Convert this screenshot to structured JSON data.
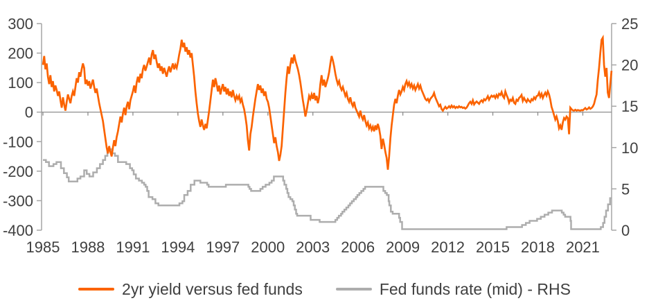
{
  "chart_data": {
    "type": "line",
    "title": "",
    "x_domain": [
      1985,
      2022.92
    ],
    "x_ticks": [
      1985,
      1988,
      1991,
      1994,
      1997,
      2000,
      2003,
      2006,
      2009,
      2012,
      2015,
      2018,
      2021
    ],
    "left_axis": {
      "range": [
        -400,
        300
      ],
      "ticks": [
        300,
        200,
        100,
        0,
        -100,
        -200,
        -300,
        -400
      ],
      "zero_baseline": 0
    },
    "right_axis": {
      "range": [
        0,
        25
      ],
      "ticks": [
        25,
        20,
        15,
        10,
        5,
        0
      ]
    },
    "grid": "off",
    "legend_position": "bottom-center",
    "legend": [
      {
        "label": "2yr yield versus fed funds",
        "color": "#FB6300"
      },
      {
        "label": "Fed funds rate (mid) - RHS",
        "color": "#ADADAD"
      }
    ],
    "series": [
      {
        "name": "2yr yield versus fed funds",
        "axis": "left",
        "unit": "bp",
        "color": "#FB6300",
        "start_year": 1985,
        "frequency": "monthly",
        "values_by_year": [
          [
            160,
            190,
            145,
            165,
            120,
            95,
            125,
            85,
            105,
            70,
            90,
            75
          ],
          [
            55,
            70,
            40,
            15,
            50,
            25,
            5,
            35,
            60,
            45,
            30,
            55
          ],
          [
            70,
            55,
            85,
            115,
            100,
            135,
            120,
            145,
            165,
            150,
            95,
            110
          ],
          [
            90,
            105,
            80,
            95,
            110,
            85,
            65,
            80,
            55,
            30,
            10,
            -10
          ],
          [
            -30,
            -60,
            -90,
            -120,
            -140,
            -115,
            -135,
            -150,
            -120,
            -95,
            -115,
            -85
          ],
          [
            -65,
            -40,
            -15,
            -35,
            -5,
            15,
            -10,
            20,
            35,
            10,
            40,
            55
          ],
          [
            70,
            90,
            65,
            100,
            120,
            100,
            130,
            115,
            145,
            160,
            140,
            155
          ],
          [
            170,
            185,
            160,
            195,
            210,
            180,
            195,
            170,
            150,
            165,
            140,
            155
          ],
          [
            130,
            150,
            135,
            120,
            140,
            155,
            135,
            150,
            165,
            145,
            160,
            150
          ],
          [
            170,
            195,
            215,
            245,
            220,
            235,
            205,
            220,
            195,
            210,
            185,
            200
          ],
          [
            160,
            120,
            70,
            30,
            -5,
            -30,
            -50,
            -25,
            -45,
            -60,
            -40,
            -55
          ],
          [
            -25,
            5,
            40,
            75,
            110,
            85,
            115,
            95,
            70,
            90,
            60,
            80
          ],
          [
            95,
            70,
            85,
            60,
            80,
            55,
            70,
            50,
            75,
            55,
            40,
            55
          ],
          [
            45,
            55,
            35,
            45,
            25,
            10,
            -15,
            -45,
            -95,
            -130,
            -75,
            -50
          ],
          [
            -15,
            15,
            45,
            70,
            95,
            75,
            90,
            65,
            80,
            55,
            70,
            45
          ],
          [
            35,
            15,
            -15,
            -45,
            -75,
            -105,
            -85,
            -115,
            -135,
            -165,
            -145,
            -115
          ],
          [
            -55,
            5,
            65,
            115,
            155,
            130,
            160,
            185,
            165,
            195,
            175,
            160
          ],
          [
            145,
            125,
            100,
            70,
            40,
            15,
            -15,
            5,
            30,
            55,
            45,
            60
          ],
          [
            45,
            65,
            40,
            55,
            30,
            50,
            95,
            125,
            90,
            110,
            85,
            100
          ],
          [
            115,
            135,
            165,
            190,
            175,
            155,
            130,
            110,
            95,
            105,
            85,
            75
          ],
          [
            85,
            70,
            55,
            65,
            45,
            35,
            50,
            30,
            20,
            35,
            15,
            5
          ],
          [
            -5,
            -15,
            5,
            -15,
            -25,
            -10,
            -30,
            -45,
            -35,
            -55,
            -45,
            -60
          ],
          [
            -50,
            -65,
            -45,
            -60,
            -40,
            -55,
            -80,
            -125,
            -90,
            -110,
            -135,
            -155
          ],
          [
            -195,
            -150,
            -90,
            -45,
            -10,
            25,
            45,
            30,
            55,
            75,
            60,
            70
          ],
          [
            85,
            75,
            95,
            105,
            90,
            100,
            85,
            95,
            80,
            90,
            75,
            85
          ],
          [
            95,
            80,
            90,
            75,
            65,
            55,
            45,
            40,
            45,
            35,
            45,
            50
          ],
          [
            55,
            65,
            50,
            40,
            30,
            20,
            25,
            10,
            5,
            12,
            18,
            12
          ],
          [
            15,
            20,
            15,
            22,
            16,
            20,
            14,
            18,
            15,
            20,
            16,
            18
          ],
          [
            14,
            16,
            12,
            15,
            22,
            30,
            35,
            28,
            40,
            26,
            32,
            36
          ],
          [
            32,
            28,
            36,
            40,
            34,
            44,
            40,
            46,
            54,
            42,
            50,
            56
          ],
          [
            52,
            56,
            48,
            58,
            50,
            62,
            58,
            68,
            54,
            48,
            70,
            58
          ],
          [
            48,
            32,
            42,
            38,
            48,
            32,
            28,
            42,
            38,
            48,
            52,
            58
          ],
          [
            38,
            48,
            40,
            34,
            44,
            38,
            34,
            44,
            40,
            50,
            44,
            54
          ],
          [
            56,
            66,
            52,
            62,
            48,
            58,
            66,
            56,
            70,
            60,
            42,
            18
          ],
          [
            5,
            -10,
            -25,
            -15,
            -30,
            -55,
            -45,
            -60,
            -35,
            -20,
            -25,
            -15
          ],
          [
            -20,
            -75,
            15,
            10,
            6,
            5,
            8,
            5,
            7,
            6,
            5,
            7
          ],
          [
            6,
            10,
            14,
            9,
            11,
            16,
            11,
            14,
            19,
            28,
            45,
            60
          ],
          [
            110,
            150,
            200,
            245,
            252,
            160,
            120,
            150,
            66,
            48,
            95,
            140
          ]
        ]
      },
      {
        "name": "Fed funds rate (mid) - RHS",
        "axis": "right",
        "unit": "%",
        "color": "#ADADAD",
        "style": "step",
        "points": [
          [
            1985.0,
            8.5
          ],
          [
            1985.2,
            8.25
          ],
          [
            1985.4,
            7.75
          ],
          [
            1985.7,
            8.0
          ],
          [
            1985.9,
            8.25
          ],
          [
            1986.2,
            7.5
          ],
          [
            1986.4,
            6.9
          ],
          [
            1986.6,
            6.4
          ],
          [
            1986.72,
            5.9
          ],
          [
            1987.3,
            6.25
          ],
          [
            1987.5,
            6.5
          ],
          [
            1987.75,
            7.25
          ],
          [
            1987.92,
            6.8
          ],
          [
            1988.1,
            6.5
          ],
          [
            1988.35,
            7.0
          ],
          [
            1988.6,
            7.5
          ],
          [
            1988.8,
            8.0
          ],
          [
            1989.0,
            8.5
          ],
          [
            1989.15,
            9.0
          ],
          [
            1989.3,
            9.75
          ],
          [
            1989.45,
            9.8
          ],
          [
            1989.6,
            9.3
          ],
          [
            1989.8,
            9.0
          ],
          [
            1990.0,
            8.25
          ],
          [
            1990.55,
            8.0
          ],
          [
            1990.8,
            7.5
          ],
          [
            1990.95,
            7.25
          ],
          [
            1991.05,
            6.75
          ],
          [
            1991.2,
            6.25
          ],
          [
            1991.4,
            6.0
          ],
          [
            1991.6,
            5.75
          ],
          [
            1991.75,
            5.5
          ],
          [
            1991.85,
            5.25
          ],
          [
            1991.95,
            4.75
          ],
          [
            1992.05,
            4.0
          ],
          [
            1992.3,
            3.75
          ],
          [
            1992.5,
            3.25
          ],
          [
            1992.7,
            3.0
          ],
          [
            1994.1,
            3.25
          ],
          [
            1994.3,
            3.5
          ],
          [
            1994.42,
            4.25
          ],
          [
            1994.65,
            4.75
          ],
          [
            1994.85,
            5.5
          ],
          [
            1995.1,
            6.0
          ],
          [
            1995.5,
            5.75
          ],
          [
            1995.95,
            5.5
          ],
          [
            1996.05,
            5.25
          ],
          [
            1997.2,
            5.5
          ],
          [
            1998.7,
            5.25
          ],
          [
            1998.78,
            5.0
          ],
          [
            1998.88,
            4.75
          ],
          [
            1999.5,
            5.0
          ],
          [
            1999.65,
            5.25
          ],
          [
            1999.85,
            5.5
          ],
          [
            2000.1,
            5.75
          ],
          [
            2000.25,
            6.0
          ],
          [
            2000.4,
            6.5
          ],
          [
            2001.02,
            6.0
          ],
          [
            2001.1,
            5.5
          ],
          [
            2001.22,
            5.0
          ],
          [
            2001.3,
            4.5
          ],
          [
            2001.38,
            4.0
          ],
          [
            2001.5,
            3.75
          ],
          [
            2001.63,
            3.5
          ],
          [
            2001.72,
            3.0
          ],
          [
            2001.8,
            2.5
          ],
          [
            2001.88,
            2.0
          ],
          [
            2001.95,
            1.75
          ],
          [
            2002.85,
            1.25
          ],
          [
            2003.45,
            1.0
          ],
          [
            2004.5,
            1.25
          ],
          [
            2004.62,
            1.5
          ],
          [
            2004.73,
            1.75
          ],
          [
            2004.88,
            2.0
          ],
          [
            2004.97,
            2.25
          ],
          [
            2005.1,
            2.5
          ],
          [
            2005.23,
            2.75
          ],
          [
            2005.37,
            3.0
          ],
          [
            2005.48,
            3.25
          ],
          [
            2005.6,
            3.5
          ],
          [
            2005.73,
            3.75
          ],
          [
            2005.87,
            4.0
          ],
          [
            2005.97,
            4.25
          ],
          [
            2006.1,
            4.5
          ],
          [
            2006.23,
            4.75
          ],
          [
            2006.37,
            5.0
          ],
          [
            2006.48,
            5.25
          ],
          [
            2007.7,
            4.75
          ],
          [
            2007.82,
            4.5
          ],
          [
            2007.93,
            4.25
          ],
          [
            2008.05,
            3.5
          ],
          [
            2008.1,
            3.0
          ],
          [
            2008.2,
            2.25
          ],
          [
            2008.32,
            2.0
          ],
          [
            2008.75,
            1.5
          ],
          [
            2008.82,
            1.0
          ],
          [
            2008.95,
            0.13
          ],
          [
            2015.92,
            0.38
          ],
          [
            2016.95,
            0.63
          ],
          [
            2017.2,
            0.88
          ],
          [
            2017.45,
            1.13
          ],
          [
            2017.95,
            1.38
          ],
          [
            2018.2,
            1.63
          ],
          [
            2018.45,
            1.88
          ],
          [
            2018.7,
            2.13
          ],
          [
            2018.95,
            2.38
          ],
          [
            2019.6,
            2.13
          ],
          [
            2019.72,
            1.88
          ],
          [
            2019.82,
            1.63
          ],
          [
            2020.18,
            1.13
          ],
          [
            2020.22,
            0.13
          ],
          [
            2022.2,
            0.38
          ],
          [
            2022.35,
            0.88
          ],
          [
            2022.45,
            1.63
          ],
          [
            2022.55,
            2.38
          ],
          [
            2022.68,
            3.13
          ],
          [
            2022.82,
            3.88
          ],
          [
            2022.92,
            3.88
          ]
        ]
      }
    ]
  },
  "colors": {
    "background": "#ffffff",
    "series_orange": "#FB6300",
    "series_gray": "#ADADAD",
    "axis_line": "#A6A6A6",
    "zero_line": "#8C8C8C",
    "tick_text": "#404040"
  }
}
